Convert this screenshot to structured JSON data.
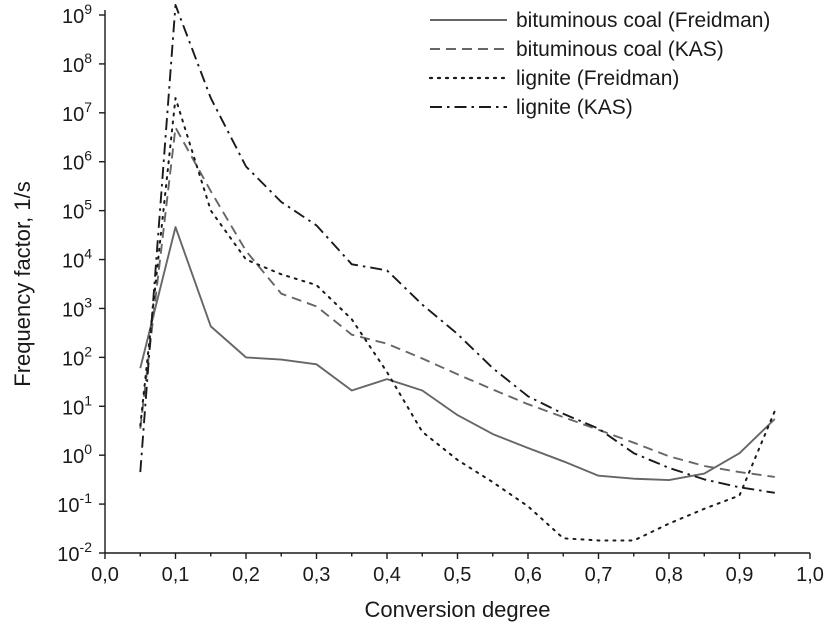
{
  "chart_data": {
    "type": "line",
    "title": "",
    "xlabel": "Conversion degree",
    "ylabel": "Frequency factor, 1/s",
    "xlim": [
      0.0,
      1.0
    ],
    "ylim": [
      0.01,
      1000000000
    ],
    "yscale": "log",
    "grid": false,
    "legend_position": "top-right",
    "x_tick_values": [
      0.0,
      0.1,
      0.2,
      0.3,
      0.4,
      0.5,
      0.6,
      0.7,
      0.8,
      0.9,
      1.0
    ],
    "x_tick_labels": [
      "0,0",
      "0,1",
      "0,2",
      "0,3",
      "0,4",
      "0,5",
      "0,6",
      "0,7",
      "0,8",
      "0,9",
      "1,0"
    ],
    "y_tick_exponents": [
      -2,
      -1,
      0,
      1,
      2,
      3,
      4,
      5,
      6,
      7,
      8,
      9
    ],
    "y_tick_base": "10",
    "series": [
      {
        "name": "bituminous coal (Freidman)",
        "style": "solid",
        "color": "#666666",
        "x": [
          0.05,
          0.1,
          0.15,
          0.2,
          0.25,
          0.3,
          0.35,
          0.4,
          0.45,
          0.5,
          0.55,
          0.6,
          0.65,
          0.7,
          0.75,
          0.8,
          0.85,
          0.9,
          0.95
        ],
        "y": [
          60,
          46000,
          430,
          100,
          90,
          72,
          21,
          36,
          21,
          6.6,
          2.7,
          1.4,
          0.75,
          0.38,
          0.33,
          0.31,
          0.42,
          1.1,
          5.5
        ]
      },
      {
        "name": "bituminous coal (KAS)",
        "style": "dashed",
        "color": "#666666",
        "x": [
          0.05,
          0.1,
          0.15,
          0.2,
          0.25,
          0.3,
          0.35,
          0.4,
          0.45,
          0.5,
          0.55,
          0.6,
          0.65,
          0.7,
          0.75,
          0.8,
          0.85,
          0.9,
          0.95
        ],
        "y": [
          3.5,
          5000000,
          250000,
          15000,
          2000,
          1100,
          290,
          190,
          95,
          45,
          22,
          11,
          6,
          3.3,
          1.8,
          0.95,
          0.6,
          0.45,
          0.36
        ]
      },
      {
        "name": "lignite (Freidman)",
        "style": "dotted",
        "color": "#1a1a1a",
        "x": [
          0.05,
          0.1,
          0.15,
          0.2,
          0.25,
          0.3,
          0.35,
          0.4,
          0.45,
          0.5,
          0.55,
          0.6,
          0.65,
          0.7,
          0.75,
          0.8,
          0.85,
          0.9,
          0.95
        ],
        "y": [
          4,
          20000000,
          100000,
          10000,
          5000,
          3000,
          600,
          50,
          3,
          0.8,
          0.28,
          0.09,
          0.02,
          0.018,
          0.018,
          0.04,
          0.08,
          0.15,
          8
        ]
      },
      {
        "name": "lignite (KAS)",
        "style": "dashdot",
        "color": "#1a1a1a",
        "x": [
          0.05,
          0.1,
          0.15,
          0.2,
          0.25,
          0.3,
          0.35,
          0.4,
          0.45,
          0.5,
          0.55,
          0.6,
          0.65,
          0.7,
          0.75,
          0.8,
          0.85,
          0.9,
          0.95
        ],
        "y": [
          0.45,
          1600000000,
          20000000,
          800000,
          150000,
          50000,
          8000,
          6000,
          1200,
          300,
          60,
          16,
          7,
          3.5,
          1.1,
          0.55,
          0.32,
          0.22,
          0.17
        ]
      }
    ]
  }
}
